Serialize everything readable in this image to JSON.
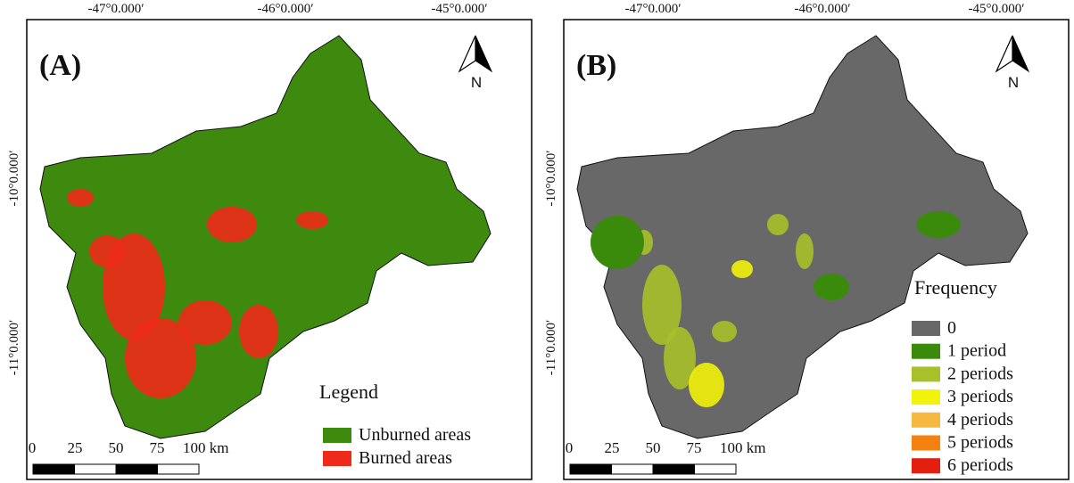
{
  "panels": [
    {
      "label": "(A)",
      "top_labels": [
        "-47°0.000′",
        "-46°0.000′",
        "-45°0.000′"
      ],
      "left_labels": [
        "-10°0.000′",
        "-11°0.000′"
      ],
      "north": "N",
      "scale_labels": [
        "0",
        "25",
        "50",
        "75",
        "100 km"
      ],
      "legend": {
        "title": "Legend",
        "items": [
          {
            "label": "Unburned areas",
            "color": "#3e8a0e"
          },
          {
            "label": "Burned areas",
            "color": "#ee2a1a"
          }
        ]
      }
    },
    {
      "label": "(B)",
      "top_labels": [
        "-47°0.000′",
        "-46°0.000′",
        "-45°0.000′"
      ],
      "left_labels": [
        "-10°0.000′",
        "-11°0.000′"
      ],
      "north": "N",
      "scale_labels": [
        "0",
        "25",
        "50",
        "75",
        "100 km"
      ],
      "legend": {
        "title": "Frequency",
        "items": [
          {
            "label": "0",
            "color": "#686868"
          },
          {
            "label": "1 period",
            "color": "#3a8a0c"
          },
          {
            "label": "2 periods",
            "color": "#a8c02a"
          },
          {
            "label": "3 periods",
            "color": "#f2f20a"
          },
          {
            "label": "4 periods",
            "color": "#f7b840"
          },
          {
            "label": "5 periods",
            "color": "#f5820f"
          },
          {
            "label": "6 periods",
            "color": "#e3200f"
          }
        ]
      }
    }
  ]
}
